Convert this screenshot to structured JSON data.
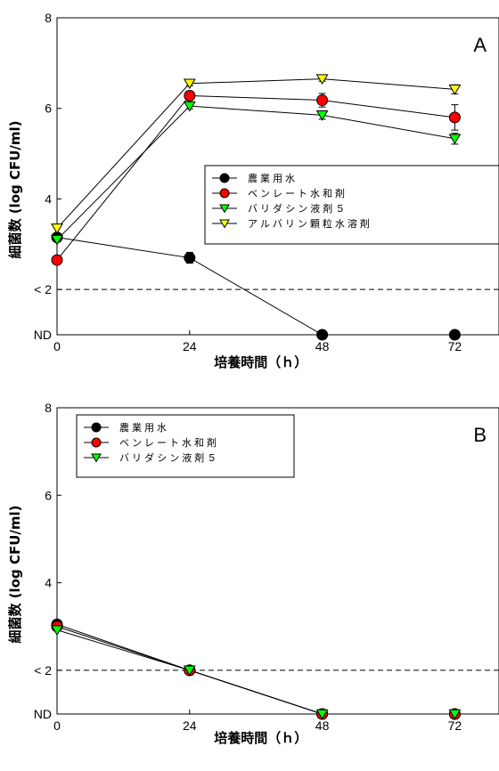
{
  "chart_data": [
    {
      "panel": "A",
      "type": "line",
      "xlabel": "培養時間（ｈ）",
      "ylabel": "細菌数 (log CFU/ml)",
      "x": [
        0,
        24,
        48,
        72
      ],
      "xticks": [
        "0",
        "24",
        "48",
        "72"
      ],
      "xlim": [
        0,
        80
      ],
      "ylim": [
        1,
        8
      ],
      "yticks": [
        {
          "value": 1,
          "label": "ND"
        },
        {
          "value": 2,
          "label": "< 2"
        },
        {
          "value": 4,
          "label": "4"
        },
        {
          "value": 6,
          "label": "6"
        },
        {
          "value": 8,
          "label": "8"
        }
      ],
      "reference_line": {
        "value": 2,
        "style": "dashed"
      },
      "legend_position": "center-right",
      "series": [
        {
          "name": "農業用水",
          "marker": "circle",
          "color": "#000000",
          "values": [
            3.15,
            2.7,
            1,
            1
          ],
          "errors": [
            0,
            0.12,
            0,
            0
          ]
        },
        {
          "name": "ベンレート水和剤",
          "marker": "circle",
          "color": "#ff0000",
          "values": [
            2.65,
            6.28,
            6.18,
            5.8
          ],
          "errors": [
            0,
            0.1,
            0.15,
            0.28
          ]
        },
        {
          "name": "バリダシン液剤５",
          "marker": "triangle-down",
          "color": "#00ff00",
          "values": [
            3.1,
            6.05,
            5.85,
            5.33
          ],
          "errors": [
            0,
            0.06,
            0.09,
            0.12
          ]
        },
        {
          "name": "アルバリン顆粒水溶剤",
          "marker": "triangle-down",
          "color": "#ffff00",
          "values": [
            3.35,
            6.55,
            6.65,
            6.42
          ],
          "errors": [
            0,
            0.05,
            0.05,
            0.1
          ]
        }
      ]
    },
    {
      "panel": "B",
      "type": "line",
      "xlabel": "培養時間（ｈ）",
      "ylabel": "細菌数 (log CFU/ml)",
      "x": [
        0,
        24,
        48,
        72
      ],
      "xticks": [
        "0",
        "24",
        "48",
        "72"
      ],
      "xlim": [
        0,
        80
      ],
      "ylim": [
        1,
        8
      ],
      "yticks": [
        {
          "value": 1,
          "label": "ND"
        },
        {
          "value": 2,
          "label": "< 2"
        },
        {
          "value": 4,
          "label": "4"
        },
        {
          "value": 6,
          "label": "6"
        },
        {
          "value": 8,
          "label": "8"
        }
      ],
      "reference_line": {
        "value": 2,
        "style": "dashed"
      },
      "legend_position": "top-left",
      "series": [
        {
          "name": "農業用水",
          "marker": "circle",
          "color": "#000000",
          "values": [
            3.05,
            2.0,
            1,
            1
          ],
          "errors": [
            0,
            0,
            0,
            0
          ]
        },
        {
          "name": "ベンレート水和剤",
          "marker": "circle",
          "color": "#ff0000",
          "values": [
            3.0,
            2.0,
            1,
            1
          ],
          "errors": [
            0,
            0,
            0,
            0
          ]
        },
        {
          "name": "バリダシン液剤５",
          "marker": "triangle-down",
          "color": "#00ff00",
          "values": [
            2.92,
            2.0,
            1,
            1
          ],
          "errors": [
            0,
            0,
            0,
            0
          ]
        }
      ]
    }
  ]
}
